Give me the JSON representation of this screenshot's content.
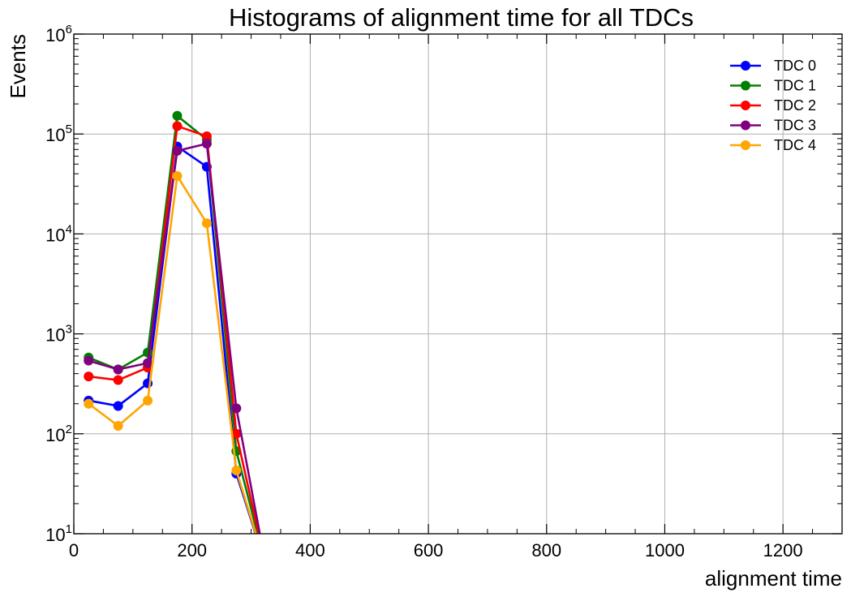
{
  "chart_data": {
    "type": "line",
    "title": "Histograms of alignment time for all TDCs",
    "xlabel": "alignment time",
    "ylabel": "Events",
    "yscale": "log",
    "xlim": [
      0,
      1300
    ],
    "ylim": [
      10,
      1000000
    ],
    "grid": true,
    "legend_position": "top-right",
    "x_ticks": [
      {
        "value": 0,
        "label": "0"
      },
      {
        "value": 200,
        "label": "200"
      },
      {
        "value": 400,
        "label": "400"
      },
      {
        "value": 600,
        "label": "600"
      },
      {
        "value": 800,
        "label": "800"
      },
      {
        "value": 1000,
        "label": "1000"
      },
      {
        "value": 1200,
        "label": "1200"
      }
    ],
    "y_ticks": [
      {
        "value": 10,
        "base": "10",
        "exp": "1"
      },
      {
        "value": 100,
        "base": "10",
        "exp": "2"
      },
      {
        "value": 1000,
        "base": "10",
        "exp": "3"
      },
      {
        "value": 10000,
        "base": "10",
        "exp": "4"
      },
      {
        "value": 100000,
        "base": "10",
        "exp": "5"
      },
      {
        "value": 1000000,
        "base": "10",
        "exp": "6"
      }
    ],
    "x": [
      25,
      75,
      125,
      175,
      225,
      275,
      325
    ],
    "series": [
      {
        "name": "TDC 0",
        "color": "#0000ff",
        "values": [
          215,
          190,
          320,
          75000,
          47000,
          40,
          0
        ]
      },
      {
        "name": "TDC 1",
        "color": "#008000",
        "values": [
          580,
          440,
          650,
          152000,
          88000,
          67,
          0
        ]
      },
      {
        "name": "TDC 2",
        "color": "#ff0000",
        "values": [
          375,
          345,
          460,
          120000,
          95000,
          100,
          0
        ]
      },
      {
        "name": "TDC 3",
        "color": "#800080",
        "values": [
          540,
          440,
          510,
          68000,
          80000,
          180,
          0
        ]
      },
      {
        "name": "TDC 4",
        "color": "#ffa500",
        "values": [
          200,
          120,
          215,
          38000,
          12800,
          43,
          0
        ]
      }
    ]
  }
}
